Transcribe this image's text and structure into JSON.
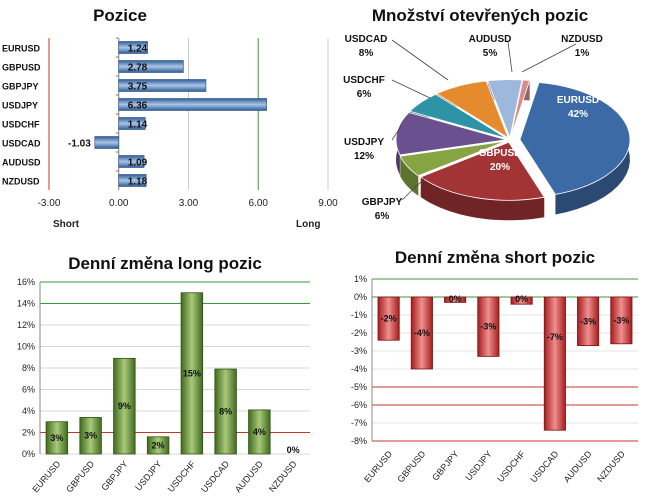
{
  "chart_data": [
    {
      "id": "positions",
      "type": "bar",
      "orientation": "horizontal",
      "title": "Pozice",
      "categories": [
        "EURUSD",
        "GBPUSD",
        "GBPJPY",
        "USDJPY",
        "USDCHF",
        "USDCAD",
        "AUDUSD",
        "NZDUSD"
      ],
      "values": [
        1.24,
        2.78,
        3.75,
        6.36,
        1.14,
        -1.03,
        1.09,
        1.18
      ],
      "value_labels": [
        "1.24",
        "2.78",
        "3.75",
        "6.36",
        "1.14",
        "-1.03",
        "1.09",
        "1.18"
      ],
      "xlim": [
        -3,
        9
      ],
      "x_ticks": [
        "-3.00",
        "0.00",
        "3.00",
        "6.00",
        "9.00"
      ],
      "short_label": "Short",
      "long_label": "Long",
      "bar_color": "#4a7ab8"
    },
    {
      "id": "open-interest",
      "type": "pie",
      "title": "Množství otevřených pozic",
      "labels": [
        "EURUSD",
        "GBPUSD",
        "GBPJPY",
        "USDJPY",
        "USDCHF",
        "USDCAD",
        "AUDUSD",
        "NZDUSD"
      ],
      "values": [
        42,
        20,
        6,
        12,
        6,
        8,
        5,
        1
      ],
      "value_labels": [
        "42%",
        "20%",
        "6%",
        "12%",
        "6%",
        "8%",
        "5%",
        "1%"
      ],
      "colors": [
        "#3c6aa6",
        "#a23436",
        "#86a442",
        "#6b5090",
        "#2f93a8",
        "#e68a2e",
        "#9db7dd",
        "#d98c8c"
      ]
    },
    {
      "id": "daily-long",
      "type": "bar",
      "title": "Denní změna long pozic",
      "categories": [
        "EURUSD",
        "GBPUSD",
        "GBPJPY",
        "USDJPY",
        "USDCHF",
        "USDCAD",
        "AUDUSD",
        "NZDUSD"
      ],
      "values": [
        3,
        3.4,
        8.9,
        1.6,
        15,
        7.9,
        4.1,
        0
      ],
      "value_labels": [
        "3%",
        "3%",
        "9%",
        "2%",
        "15%",
        "8%",
        "4%",
        "0%"
      ],
      "ylim": [
        0,
        16
      ],
      "y_ticks": [
        "0%",
        "2%",
        "4%",
        "6%",
        "8%",
        "10%",
        "12%",
        "14%",
        "16%"
      ],
      "bar_color": "#5a8a2e"
    },
    {
      "id": "daily-short",
      "type": "bar",
      "title": "Denní změna short pozic",
      "categories": [
        "EURUSD",
        "GBPUSD",
        "GBPJPY",
        "USDJPY",
        "USDCHF",
        "USDCAD",
        "AUDUSD",
        "NZDUSD"
      ],
      "values": [
        -2.4,
        -4,
        -0.3,
        -3.3,
        -0.4,
        -7.4,
        -2.7,
        -2.6
      ],
      "value_labels": [
        "-2%",
        "-4%",
        "0%",
        "-3%",
        "0%",
        "-7%",
        "-3%",
        "-3%"
      ],
      "ylim": [
        -8,
        1
      ],
      "y_ticks": [
        "1%",
        "0%",
        "-1%",
        "-2%",
        "-3%",
        "-4%",
        "-5%",
        "-6%",
        "-7%",
        "-8%"
      ],
      "bar_color": "#c62b2b"
    }
  ]
}
